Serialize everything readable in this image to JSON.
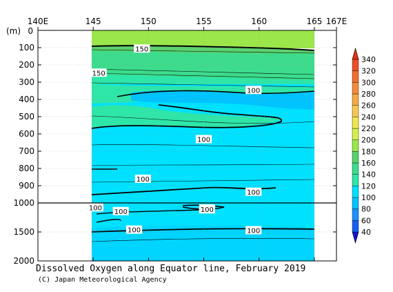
{
  "chart_data": {
    "type": "contour",
    "title": "Dissolved Oxygen along Equator line, February 2019",
    "credit": "(C) Japan Meteorological Agency",
    "x_axis": {
      "range": [
        140,
        167
      ],
      "ticks": [
        {
          "value": 140,
          "label": "140E"
        },
        {
          "value": 145,
          "label": "145"
        },
        {
          "value": 150,
          "label": "150"
        },
        {
          "value": 155,
          "label": "155"
        },
        {
          "value": 160,
          "label": "160"
        },
        {
          "value": 165,
          "label": "165"
        },
        {
          "value": 167,
          "label": "167E"
        }
      ]
    },
    "y_axis": {
      "unit_label": "(m)",
      "upper_range": [
        0,
        1000
      ],
      "lower_range": [
        1000,
        2000
      ],
      "ticks": [
        {
          "value": 0,
          "label": "0"
        },
        {
          "value": 100,
          "label": "100"
        },
        {
          "value": 200,
          "label": "200"
        },
        {
          "value": 300,
          "label": "300"
        },
        {
          "value": 400,
          "label": "400"
        },
        {
          "value": 500,
          "label": "500"
        },
        {
          "value": 600,
          "label": "600"
        },
        {
          "value": 700,
          "label": "700"
        },
        {
          "value": 800,
          "label": "800"
        },
        {
          "value": 900,
          "label": "900"
        },
        {
          "value": 1000,
          "label": "1000"
        },
        {
          "value": 1500,
          "label": "1500"
        },
        {
          "value": 2000,
          "label": "2000"
        }
      ]
    },
    "data_extent": {
      "lon": [
        145,
        165
      ],
      "depth": [
        0,
        2000
      ]
    },
    "colorbar": {
      "levels": [
        40,
        60,
        80,
        100,
        120,
        140,
        160,
        180,
        200,
        220,
        240,
        260,
        280,
        300,
        320,
        340
      ],
      "colors": [
        "#1a5ff0",
        "#1e90ff",
        "#00c3ff",
        "#00e0ff",
        "#2ee6a8",
        "#3cdc8c",
        "#5ad26e",
        "#9be64b",
        "#d2f04b",
        "#f0e650",
        "#f5c850",
        "#f5aa46",
        "#f58c3c",
        "#f06e32",
        "#eb5028",
        "#e13214"
      ]
    },
    "contour_labels": [
      {
        "lon": 149.4,
        "depth": 105,
        "text": "150"
      },
      {
        "lon": 145.5,
        "depth": 245,
        "text": "150"
      },
      {
        "lon": 155.0,
        "depth": 630,
        "text": "100"
      },
      {
        "lon": 159.5,
        "depth": 345,
        "text": "100"
      },
      {
        "lon": 149.5,
        "depth": 860,
        "text": "100"
      },
      {
        "lon": 159.5,
        "depth": 935,
        "text": "100"
      },
      {
        "lon": 145.2,
        "depth": 1075,
        "text": "100"
      },
      {
        "lon": 147.5,
        "depth": 1140,
        "text": "100"
      },
      {
        "lon": 155.3,
        "depth": 1095,
        "text": "100"
      },
      {
        "lon": 155.3,
        "depth": 1110,
        "text": "100"
      },
      {
        "lon": 148.7,
        "depth": 1460,
        "text": "100"
      },
      {
        "lon": 159.5,
        "depth": 1470,
        "text": "100"
      }
    ]
  }
}
